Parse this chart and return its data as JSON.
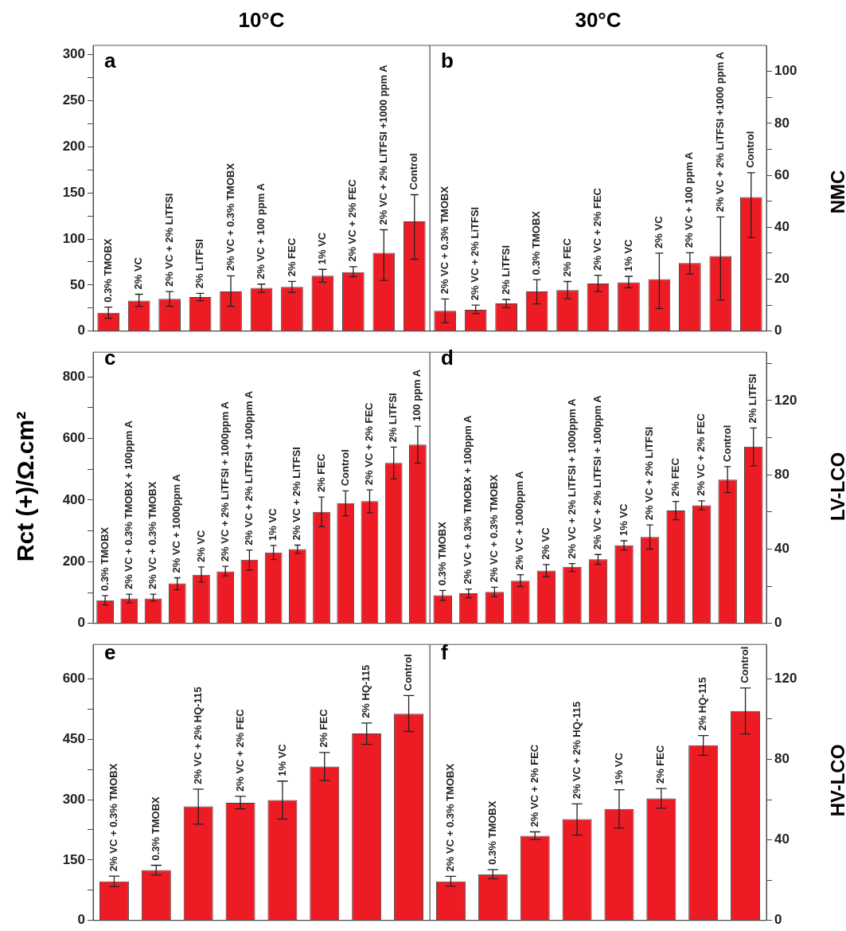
{
  "chart_data": [
    {
      "type": "bar",
      "title": "10°C",
      "annotations": [
        "a"
      ],
      "categories": [
        "0.3% TMOBX",
        "2% VC",
        "2% VC + 2% LiTFSI",
        "2% LiTFSI",
        "2% VC + 0.3% TMOBX",
        "2% VC + 100 ppm A",
        "2% FEC",
        "1% VC",
        "2% VC + 2% FEC",
        "2% VC + 2% LiTFSI +1000 ppm A",
        "Control"
      ],
      "series": [
        {
          "color": "#ed1c24",
          "values": [
            20,
            33,
            35,
            37,
            43,
            47,
            48,
            60,
            64,
            85,
            119
          ],
          "errors": [
            [
              14,
              26
            ],
            [
              27,
              40
            ],
            [
              27,
              43
            ],
            [
              33,
              41
            ],
            [
              27,
              60
            ],
            [
              42,
              51
            ],
            [
              42,
              54
            ],
            [
              53,
              67
            ],
            [
              59,
              70
            ],
            [
              55,
              110
            ],
            [
              78,
              148
            ]
          ]
        }
      ],
      "ylim": [
        0,
        310
      ],
      "yticks": [
        0,
        {
          "value": 25,
          "label": null
        },
        50,
        {
          "value": 75,
          "label": null
        },
        100,
        {
          "value": 125,
          "label": null
        },
        150,
        {
          "value": 175,
          "label": null
        },
        200,
        {
          "value": 225,
          "label": null
        },
        250,
        {
          "value": 275,
          "label": null
        },
        300
      ]
    },
    {
      "type": "bar",
      "title": "30°C",
      "y2label": "NMC",
      "annotations": [
        "b"
      ],
      "categories": [
        "2% VC + 0.3% TMOBX",
        "2% VC + 2% LiTFSI",
        "2% LiTFSI",
        "0.3% TMOBX",
        "2% FEC",
        "2% VC + 2% FEC",
        "1% VC",
        "2% VC",
        "2% VC + 100 ppm A",
        "2% VC + 2% LiTFSI +1000 ppm A",
        "Control"
      ],
      "series": [
        {
          "axis": "y2",
          "color": "#ed1c24",
          "values": [
            7.8,
            8.2,
            10.7,
            15.3,
            15.8,
            18.3,
            18.8,
            20,
            26.2,
            28.9,
            51.6
          ],
          "errors": [
            [
              3.3,
              12.4
            ],
            [
              6.7,
              10
            ],
            [
              9,
              12.2
            ],
            [
              10.5,
              19.8
            ],
            [
              12.5,
              19.1
            ],
            [
              15.2,
              21.5
            ],
            [
              16.7,
              21.1
            ],
            [
              8.7,
              30
            ],
            [
              22,
              30.2
            ],
            [
              12,
              44
            ],
            [
              36,
              61
            ]
          ]
        }
      ],
      "y2lim": [
        0,
        110
      ],
      "y2ticks": [
        0,
        {
          "value": 10,
          "label": null
        },
        20,
        {
          "value": 30,
          "label": null
        },
        40,
        {
          "value": 50,
          "label": null
        },
        60,
        {
          "value": 70,
          "label": null
        },
        80,
        {
          "value": 90,
          "label": null
        },
        100
      ]
    },
    {
      "type": "bar",
      "ylabel": "Rct (+)/Ω.cm²",
      "annotations": [
        "c"
      ],
      "categories": [
        "0.3% TMOBX",
        "2% VC + 0.3% TMOBX + 100ppm A",
        "2% VC + 0.3% TMOBX",
        "2% VC + 1000ppm A",
        "2% VC",
        "2% VC + 2% LiTFSI + 1000ppm A",
        "2% VC + 2% LiTFSI + 100ppm A",
        "1% VC",
        "2% VC + 2% LiTFSI",
        "2% FEC",
        "Control",
        "2% VC + 2% FEC",
        "2% LiTFSI",
        "100 ppm A"
      ],
      "series": [
        {
          "color": "#ed1c24",
          "values": [
            75,
            81,
            81,
            130,
            158,
            169,
            207,
            230,
            241,
            362,
            390,
            397,
            521,
            580
          ],
          "errors": [
            [
              60,
              90
            ],
            [
              67,
              95
            ],
            [
              72,
              95
            ],
            [
              109,
              148
            ],
            [
              134,
              183
            ],
            [
              154,
              185
            ],
            [
              173,
              238
            ],
            [
              207,
              253
            ],
            [
              227,
              254
            ],
            [
              314,
              410
            ],
            [
              349,
              430
            ],
            [
              359,
              433
            ],
            [
              469,
              572
            ],
            [
              520,
              640
            ]
          ]
        }
      ],
      "ylim": [
        0,
        880
      ],
      "yticks": [
        0,
        {
          "value": 100,
          "label": null
        },
        200,
        {
          "value": 300,
          "label": null
        },
        400,
        {
          "value": 500,
          "label": null
        },
        600,
        {
          "value": 700,
          "label": null
        },
        800
      ]
    },
    {
      "type": "bar",
      "y2label": "LV-LCO",
      "annotations": [
        "d"
      ],
      "categories": [
        "0.3% TMOBX",
        "2% VC + 0.3% TMOBX + 100ppm A",
        "2% VC + 0.3% TMOBX",
        "2% VC + 1000ppm A",
        "2% VC",
        "2% VC + 2% LiTFSI + 1000ppm A",
        "2% VC + 2% LiTFSI + 100ppm A",
        "1% VC",
        "2% VC + 2% LiTFSI",
        "2% FEC",
        "2% VC + 2% FEC",
        "Control",
        "2% LiTFSI"
      ],
      "series": [
        {
          "axis": "y2",
          "color": "#ed1c24",
          "values": [
            15.1,
            16.2,
            16.9,
            23,
            28.4,
            30.5,
            34.5,
            42,
            46.5,
            60.8,
            63.6,
            77.4,
            95.2
          ],
          "errors": [
            [
              12.4,
              17.8
            ],
            [
              13.8,
              18.5
            ],
            [
              14.4,
              19.5
            ],
            [
              19.8,
              26.2
            ],
            [
              25.2,
              31.7
            ],
            [
              27.9,
              32.2
            ],
            [
              31.8,
              37.1
            ],
            [
              39.4,
              44.5
            ],
            [
              40,
              53
            ],
            [
              55.8,
              65.7
            ],
            [
              61.2,
              66
            ],
            [
              70.4,
              84.4
            ],
            [
              84.8,
              105.2
            ]
          ]
        }
      ],
      "y2lim": [
        0,
        146
      ],
      "y2ticks": [
        0,
        {
          "value": 20,
          "label": null
        },
        40,
        {
          "value": 60,
          "label": null
        },
        80,
        {
          "value": 100,
          "label": null
        },
        120,
        {
          "value": 140,
          "label": null
        }
      ]
    },
    {
      "type": "bar",
      "annotations": [
        "e"
      ],
      "categories": [
        "2% VC + 0.3% TMOBX",
        "0.3% TMOBX",
        "2% VC + 2% HQ-115",
        "2% VC + 2% FEC",
        "1% VC",
        "2% FEC",
        "2% HQ-115",
        "Control"
      ],
      "series": [
        {
          "color": "#ed1c24",
          "values": [
            97,
            125,
            283,
            292,
            299,
            382,
            464,
            513
          ],
          "errors": [
            [
              84,
              110
            ],
            [
              113,
              137
            ],
            [
              239,
              326
            ],
            [
              277,
              308
            ],
            [
              252,
              346
            ],
            [
              347,
              417
            ],
            [
              437,
              490
            ],
            [
              469,
              558
            ]
          ]
        }
      ],
      "ylim": [
        0,
        685
      ],
      "yticks": [
        0,
        {
          "value": 75,
          "label": null
        },
        150,
        {
          "value": 225,
          "label": null
        },
        300,
        {
          "value": 375,
          "label": null
        },
        450,
        {
          "value": 525,
          "label": null
        },
        600
      ]
    },
    {
      "type": "bar",
      "y2label": "HV-LCO",
      "annotations": [
        "f"
      ],
      "categories": [
        "2% VC + 0.3% TMOBX",
        "0.3% TMOBX",
        "2% VC + 2% FEC",
        "2% VC + 2% HQ-115",
        "1% VC",
        "2% FEC",
        "2% HQ-115",
        "Control"
      ],
      "series": [
        {
          "axis": "y2",
          "color": "#ed1c24",
          "values": [
            19.4,
            22.9,
            42,
            50.3,
            55.4,
            60.6,
            87,
            104
          ],
          "errors": [
            [
              17.1,
              21.9
            ],
            [
              20.7,
              25.3
            ],
            [
              40.2,
              44
            ],
            [
              42.4,
              57.9
            ],
            [
              45.8,
              64.9
            ],
            [
              55.7,
              65.5
            ],
            [
              82,
              91.8
            ],
            [
              92.6,
              115.4
            ]
          ]
        }
      ],
      "y2lim": [
        0,
        137
      ],
      "y2ticks": [
        0,
        {
          "value": 20,
          "label": null
        },
        40,
        {
          "value": 60,
          "label": null
        },
        80,
        {
          "value": 100,
          "label": null
        },
        120
      ]
    }
  ]
}
